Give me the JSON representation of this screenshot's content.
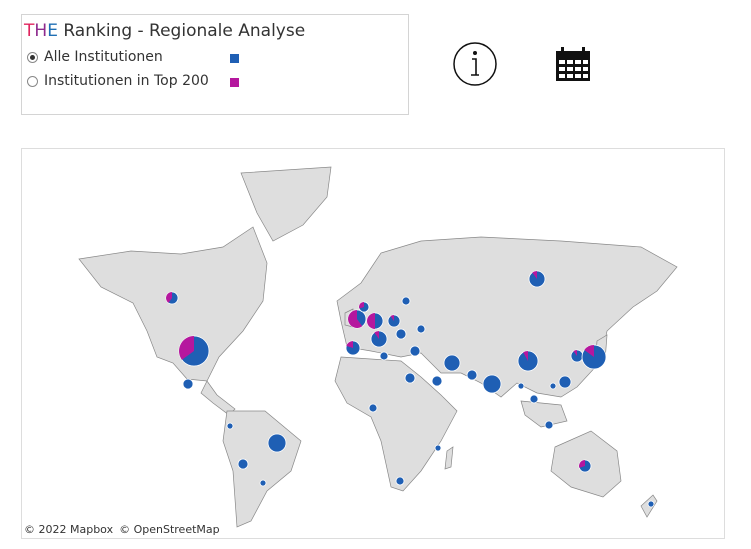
{
  "header": {
    "brand": "THE",
    "title": "Ranking - Regionale Analyse"
  },
  "legend": {
    "items": [
      {
        "label": "Alle Institutionen",
        "color": "#1f5fb4",
        "selected": true
      },
      {
        "label": "Institutionen in Top 200",
        "color": "#b5179e",
        "selected": false
      }
    ]
  },
  "brand_colors": [
    "#e0245e",
    "#8e2a8e",
    "#1f6fb4"
  ],
  "attribution": [
    "© 2022 Mapbox",
    "© OpenStreetMap"
  ]
}
